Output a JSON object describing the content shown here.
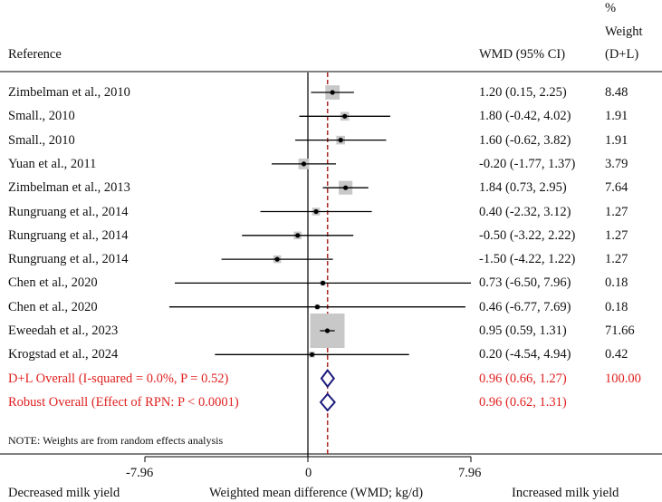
{
  "header": {
    "reference": "Reference",
    "wmd": "WMD (95% CI)",
    "weight_line1": "%",
    "weight_line2": "Weight",
    "weight_line3": "(D+L)"
  },
  "note": "NOTE: Weights are from random effects analysis",
  "axis": {
    "tick_labels": [
      "-7.96",
      "0",
      "7.96"
    ],
    "left_label": "Decreased milk yield",
    "center_label": "Weighted mean difference (WMD; kg/d)",
    "right_label": "Increased milk yield"
  },
  "colors": {
    "overall_text": "#e02020",
    "diamond": "#1a1a7a",
    "ref_line": "#b03030",
    "box": "#c8c8c8"
  },
  "chart_data": {
    "type": "forest",
    "xlim": [
      -7.96,
      7.96
    ],
    "null_value": 0,
    "pooled_reference": 0.96,
    "studies": [
      {
        "reference": "Zimbelman et al., 2010",
        "wmd": 1.2,
        "lo": 0.15,
        "hi": 2.25,
        "ci_text": "1.20 (0.15, 2.25)",
        "weight": 8.48,
        "weight_text": "8.48"
      },
      {
        "reference": "Small., 2010",
        "wmd": 1.8,
        "lo": -0.42,
        "hi": 4.02,
        "ci_text": "1.80 (-0.42, 4.02)",
        "weight": 1.91,
        "weight_text": "1.91"
      },
      {
        "reference": "Small., 2010",
        "wmd": 1.6,
        "lo": -0.62,
        "hi": 3.82,
        "ci_text": "1.60 (-0.62, 3.82)",
        "weight": 1.91,
        "weight_text": "1.91"
      },
      {
        "reference": "Yuan et al., 2011",
        "wmd": -0.2,
        "lo": -1.77,
        "hi": 1.37,
        "ci_text": "-0.20 (-1.77, 1.37)",
        "weight": 3.79,
        "weight_text": "3.79"
      },
      {
        "reference": "Zimbelman et al., 2013",
        "wmd": 1.84,
        "lo": 0.73,
        "hi": 2.95,
        "ci_text": "1.84 (0.73, 2.95)",
        "weight": 7.64,
        "weight_text": "7.64"
      },
      {
        "reference": "Rungruang et al., 2014",
        "wmd": 0.4,
        "lo": -2.32,
        "hi": 3.12,
        "ci_text": "0.40 (-2.32, 3.12)",
        "weight": 1.27,
        "weight_text": "1.27"
      },
      {
        "reference": "Rungruang et al., 2014",
        "wmd": -0.5,
        "lo": -3.22,
        "hi": 2.22,
        "ci_text": "-0.50 (-3.22, 2.22)",
        "weight": 1.27,
        "weight_text": "1.27"
      },
      {
        "reference": "Rungruang et al., 2014",
        "wmd": -1.5,
        "lo": -4.22,
        "hi": 1.22,
        "ci_text": "-1.50 (-4.22, 1.22)",
        "weight": 1.27,
        "weight_text": "1.27"
      },
      {
        "reference": "Chen et al., 2020",
        "wmd": 0.73,
        "lo": -6.5,
        "hi": 7.96,
        "ci_text": "0.73 (-6.50, 7.96)",
        "weight": 0.18,
        "weight_text": "0.18"
      },
      {
        "reference": "Chen et al., 2020",
        "wmd": 0.46,
        "lo": -6.77,
        "hi": 7.69,
        "ci_text": "0.46 (-6.77, 7.69)",
        "weight": 0.18,
        "weight_text": "0.18"
      },
      {
        "reference": "Eweedah et al., 2023",
        "wmd": 0.95,
        "lo": 0.59,
        "hi": 1.31,
        "ci_text": "0.95 (0.59, 1.31)",
        "weight": 71.66,
        "weight_text": "71.66"
      },
      {
        "reference": "Krogstad et al., 2024",
        "wmd": 0.2,
        "lo": -4.54,
        "hi": 4.94,
        "ci_text": "0.20 (-4.54, 4.94)",
        "weight": 0.42,
        "weight_text": "0.42"
      }
    ],
    "overall": [
      {
        "label": "D+L Overall  (I-squared = 0.0%, P = 0.52)",
        "wmd": 0.96,
        "lo": 0.66,
        "hi": 1.27,
        "ci_text": "0.96 (0.66, 1.27)",
        "weight_text": "100.00"
      },
      {
        "label": "Robust Overall (Effect of RPN: P < 0.0001)",
        "wmd": 0.96,
        "lo": 0.62,
        "hi": 1.31,
        "ci_text": "0.96 (0.62, 1.31)",
        "weight_text": ""
      }
    ]
  }
}
